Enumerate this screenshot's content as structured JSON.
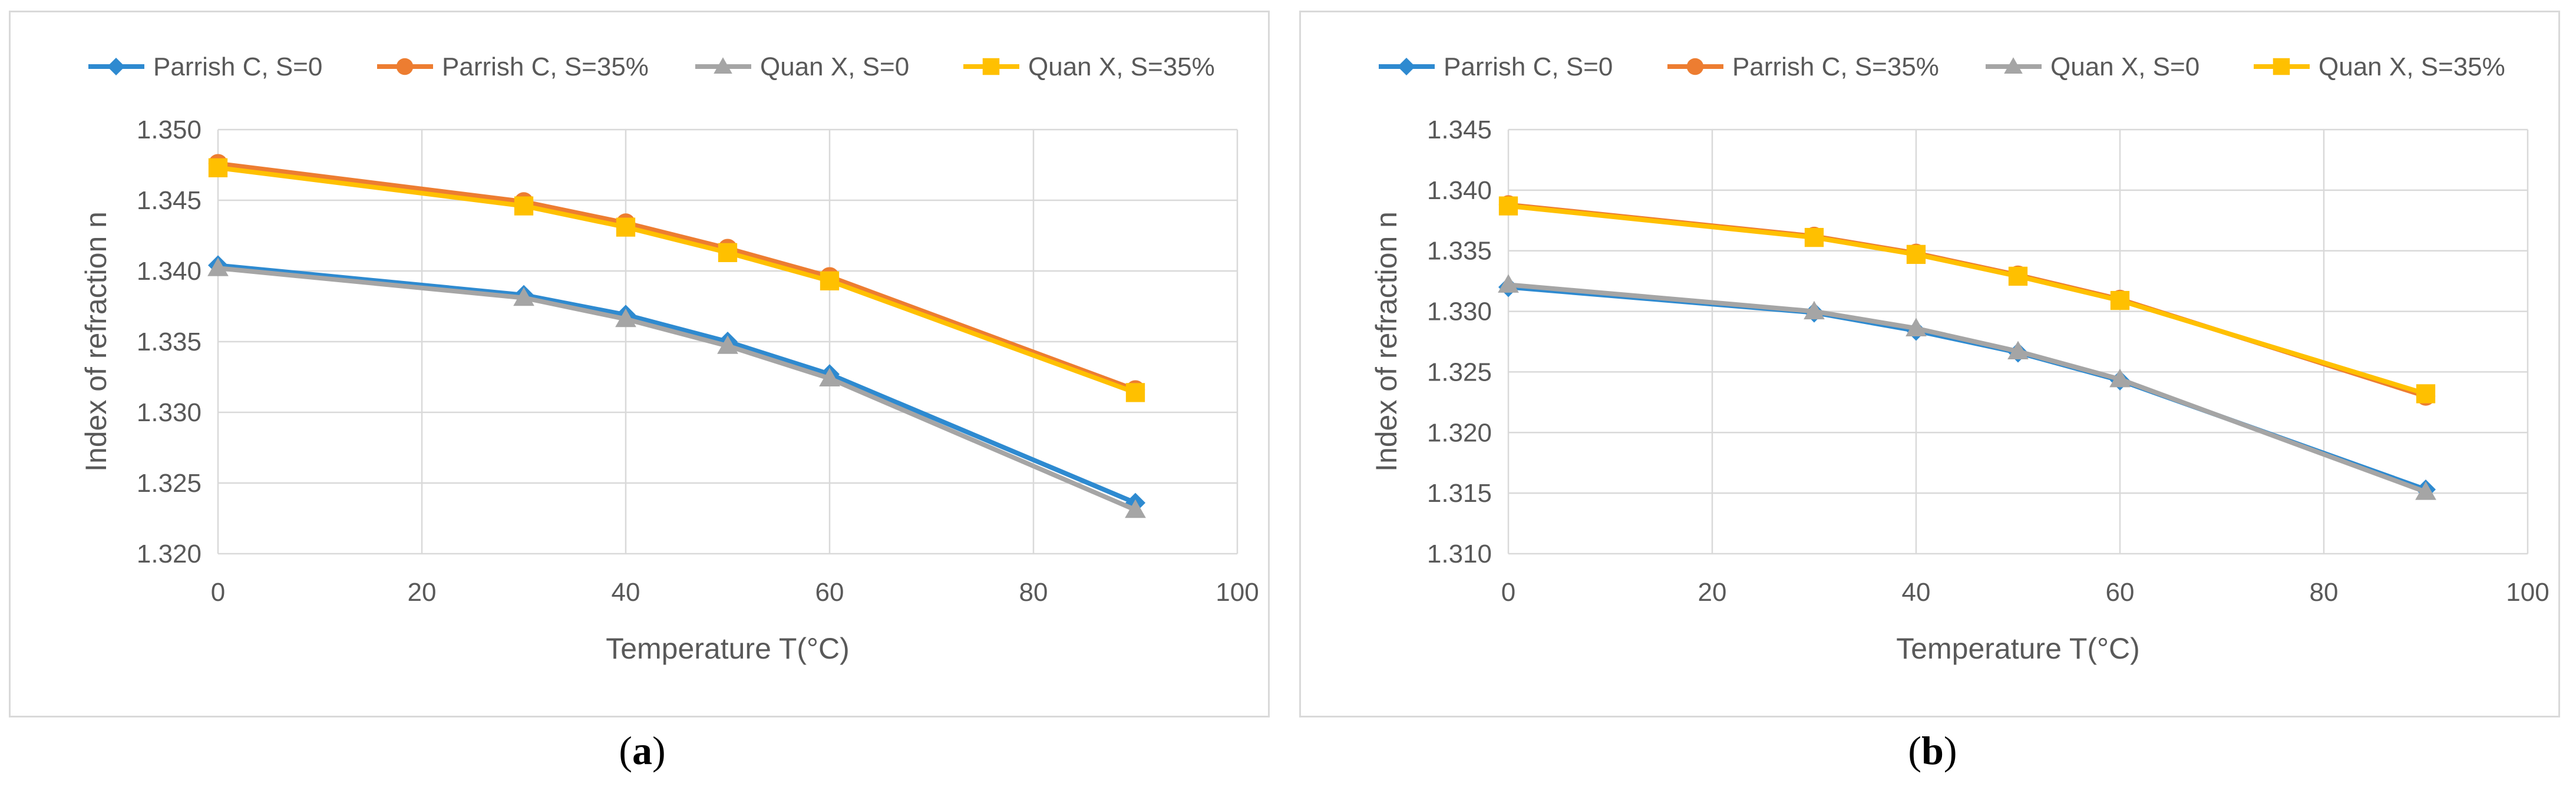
{
  "chart_data": [
    {
      "type": "line",
      "panel_label": "a",
      "caption_open": "(",
      "caption_close": ")",
      "xlabel": "Temperature T(°C)",
      "ylabel": "Index of refraction n",
      "xlim": [
        0,
        100
      ],
      "ylim": [
        1.32,
        1.35
      ],
      "xticks": [
        0,
        20,
        40,
        60,
        80,
        100
      ],
      "yticks": [
        "1.320",
        "1.325",
        "1.330",
        "1.335",
        "1.340",
        "1.345",
        "1.350"
      ],
      "x": [
        0,
        30,
        40,
        50,
        60,
        90
      ],
      "series": [
        {
          "name": "Parrish C, S=0",
          "color": "#2e8ad0",
          "marker": "diamond",
          "values": [
            1.3404,
            1.3383,
            1.3369,
            1.335,
            1.3327,
            1.3236
          ]
        },
        {
          "name": "Parrish C, S=35%",
          "color": "#ed7d31",
          "marker": "circle",
          "values": [
            1.3476,
            1.3449,
            1.3434,
            1.3416,
            1.3396,
            1.3316
          ]
        },
        {
          "name": "Quan X, S=0",
          "color": "#a5a5a5",
          "marker": "triangle",
          "values": [
            1.3402,
            1.3381,
            1.3366,
            1.3347,
            1.3324,
            1.3231
          ]
        },
        {
          "name": "Quan X, S=35%",
          "color": "#ffc000",
          "marker": "square",
          "values": [
            1.3473,
            1.3446,
            1.3431,
            1.3413,
            1.3393,
            1.3314
          ]
        }
      ]
    },
    {
      "type": "line",
      "panel_label": "b",
      "caption_open": "(",
      "caption_close": ")",
      "xlabel": "Temperature T(°C)",
      "ylabel": "Index of refraction n",
      "xlim": [
        0,
        100
      ],
      "ylim": [
        1.31,
        1.345
      ],
      "xticks": [
        0,
        20,
        40,
        60,
        80,
        100
      ],
      "yticks": [
        "1.310",
        "1.315",
        "1.320",
        "1.325",
        "1.330",
        "1.335",
        "1.340",
        "1.345"
      ],
      "x": [
        0,
        30,
        40,
        50,
        60,
        90
      ],
      "series": [
        {
          "name": "Parrish C, S=0",
          "color": "#2e8ad0",
          "marker": "diamond",
          "values": [
            1.332,
            1.3299,
            1.3284,
            1.3266,
            1.3243,
            1.3153
          ]
        },
        {
          "name": "Parrish C, S=35%",
          "color": "#ed7d31",
          "marker": "circle",
          "values": [
            1.3388,
            1.3362,
            1.3348,
            1.333,
            1.331,
            1.323
          ]
        },
        {
          "name": "Quan X, S=0",
          "color": "#a5a5a5",
          "marker": "triangle",
          "values": [
            1.3322,
            1.33,
            1.3286,
            1.3267,
            1.3244,
            1.3151
          ]
        },
        {
          "name": "Quan X, S=35%",
          "color": "#ffc000",
          "marker": "square",
          "values": [
            1.3387,
            1.3361,
            1.3347,
            1.3329,
            1.3309,
            1.3232
          ]
        }
      ]
    }
  ]
}
